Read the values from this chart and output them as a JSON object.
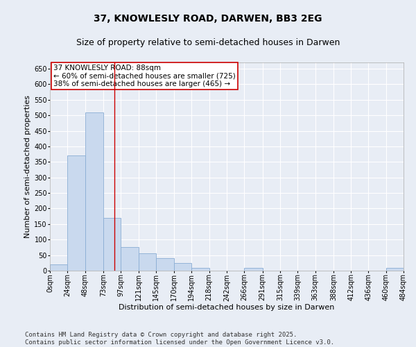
{
  "title": "37, KNOWLESLY ROAD, DARWEN, BB3 2EG",
  "subtitle": "Size of property relative to semi-detached houses in Darwen",
  "xlabel": "Distribution of semi-detached houses by size in Darwen",
  "ylabel": "Number of semi-detached properties",
  "bar_color": "#c9d9ee",
  "bar_edge_color": "#8aadd4",
  "background_color": "#e8edf5",
  "grid_color": "#ffffff",
  "property_line_x": 88,
  "property_line_color": "#cc0000",
  "annotation_text": "37 KNOWLESLY ROAD: 88sqm\n← 60% of semi-detached houses are smaller (725)\n38% of semi-detached houses are larger (465) →",
  "annotation_box_color": "#cc0000",
  "bin_edges": [
    0,
    24,
    48,
    73,
    97,
    121,
    145,
    170,
    194,
    218,
    242,
    266,
    291,
    315,
    339,
    363,
    388,
    412,
    436,
    460,
    484
  ],
  "bar_heights": [
    20,
    370,
    510,
    170,
    75,
    55,
    40,
    25,
    10,
    0,
    0,
    10,
    0,
    0,
    0,
    0,
    0,
    0,
    0,
    10
  ],
  "ylim": [
    0,
    670
  ],
  "yticks": [
    0,
    50,
    100,
    150,
    200,
    250,
    300,
    350,
    400,
    450,
    500,
    550,
    600,
    650
  ],
  "footer_text": "Contains HM Land Registry data © Crown copyright and database right 2025.\nContains public sector information licensed under the Open Government Licence v3.0.",
  "title_fontsize": 10,
  "subtitle_fontsize": 9,
  "axis_fontsize": 8,
  "tick_fontsize": 7,
  "footer_fontsize": 6.5,
  "annotation_fontsize": 7.5
}
